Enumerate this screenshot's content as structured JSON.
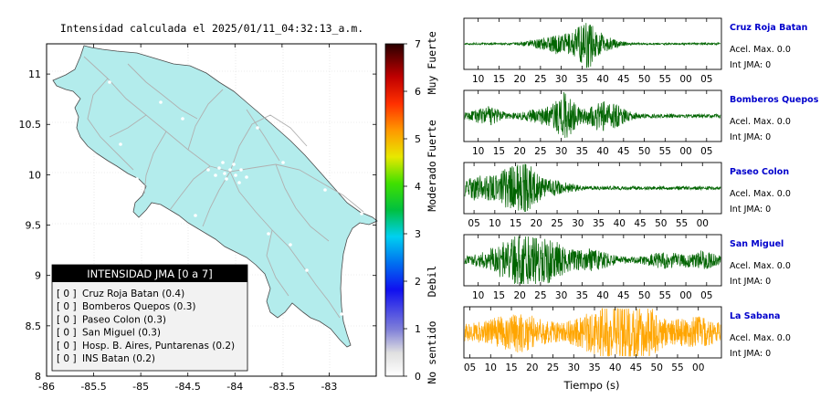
{
  "map": {
    "title": "Intensidad calculada el 2025/01/11_04:32:13_a.m.",
    "lon_ticks": [
      "-86",
      "-85.5",
      "-85",
      "-84.5",
      "-84",
      "-83.5",
      "-83"
    ],
    "lat_ticks": [
      "11",
      "10.5",
      "10",
      "9.5",
      "9",
      "8.5",
      "8"
    ],
    "lon_range": [
      -86,
      -82.5
    ],
    "lat_range": [
      8,
      11.3
    ],
    "land_color": "#b3ecec",
    "road_color": "#b0b0b0",
    "legend": {
      "header": "INTENSIDAD JMA [0 a 7]",
      "items": [
        {
          "level": "[ 0 ]",
          "label": "Cruz Roja Batan (0.4)"
        },
        {
          "level": "[ 0 ]",
          "label": "Bomberos Quepos (0.3)"
        },
        {
          "level": "[ 0 ]",
          "label": "Paseo Colon (0.3)"
        },
        {
          "level": "[ 0 ]",
          "label": "San Miguel (0.3)"
        },
        {
          "level": "[ 0 ]",
          "label": "Hosp. B. Aires, Puntarenas (0.2)"
        },
        {
          "level": "[ 0 ]",
          "label": "INS Batan (0.2)"
        }
      ]
    }
  },
  "colorbar": {
    "ticks": [
      "0",
      "1",
      "2",
      "3",
      "4",
      "5",
      "6",
      "7"
    ],
    "range": [
      0,
      7
    ],
    "categories": [
      {
        "label": "No sentido",
        "center": 0.5
      },
      {
        "label": "Debil",
        "center": 2
      },
      {
        "label": "Moderado",
        "center": 4
      },
      {
        "label": "Fuerte",
        "center": 5
      },
      {
        "label": "Muy Fuerte",
        "center": 6.6
      }
    ]
  },
  "chart_data": {
    "type": "line",
    "xlabel": "Tiempo (s)",
    "panels": [
      {
        "station": "Cruz Roja Batan",
        "accel_label": "Acel. Max. 0.0",
        "int_label": "Int JMA: 0",
        "color": "#006400",
        "ticks": [
          "10",
          "15",
          "20",
          "25",
          "30",
          "35",
          "40",
          "45",
          "50",
          "55",
          "00",
          "05"
        ],
        "first_tick_offset": 3,
        "bursts": [
          {
            "t": 22,
            "a": 0.4,
            "w": 4
          },
          {
            "t": 29,
            "a": 1.0,
            "w": 2
          },
          {
            "t": 33,
            "a": 0.3,
            "w": 3
          }
        ],
        "noise": 0.04
      },
      {
        "station": "Bomberos Quepos",
        "accel_label": "Acel. Max. 0.0",
        "int_label": "Int JMA: 0",
        "color": "#006400",
        "ticks": [
          "10",
          "15",
          "20",
          "25",
          "30",
          "35",
          "40",
          "45",
          "50",
          "55",
          "00",
          "05"
        ],
        "first_tick_offset": 3,
        "bursts": [
          {
            "t": 5,
            "a": 0.35,
            "w": 3
          },
          {
            "t": 18,
            "a": 0.3,
            "w": 3
          },
          {
            "t": 24,
            "a": 1.0,
            "w": 2
          },
          {
            "t": 32,
            "a": 0.45,
            "w": 3
          },
          {
            "t": 36,
            "a": 0.3,
            "w": 3
          }
        ],
        "noise": 0.08
      },
      {
        "station": "Paseo Colon",
        "accel_label": "Acel. Max. 0.0",
        "int_label": "Int JMA: 0",
        "color": "#006400",
        "ticks": [
          "05",
          "10",
          "15",
          "20",
          "25",
          "30",
          "35",
          "40",
          "45",
          "50",
          "55",
          "00"
        ],
        "first_tick_offset": 2,
        "bursts": [
          {
            "t": 2,
            "a": 0.45,
            "w": 3
          },
          {
            "t": 9,
            "a": 0.55,
            "w": 3
          },
          {
            "t": 14,
            "a": 1.0,
            "w": 2.5
          },
          {
            "t": 20,
            "a": 0.3,
            "w": 4
          }
        ],
        "noise": 0.08
      },
      {
        "station": "San Miguel",
        "accel_label": "Acel. Max. 0.0",
        "int_label": "Int JMA: 0",
        "color": "#006400",
        "ticks": [
          "10",
          "15",
          "20",
          "25",
          "30",
          "35",
          "40",
          "45",
          "50",
          "55",
          "00",
          "05"
        ],
        "first_tick_offset": 3,
        "bursts": [
          {
            "t": 12,
            "a": 1.0,
            "w": 5
          },
          {
            "t": 20,
            "a": 0.6,
            "w": 4
          },
          {
            "t": 30,
            "a": 0.35,
            "w": 4
          },
          {
            "t": 48,
            "a": 0.3,
            "w": 3
          },
          {
            "t": 57,
            "a": 0.3,
            "w": 3
          }
        ],
        "noise": 0.12
      },
      {
        "station": "La Sabana",
        "accel_label": "Acel. Max. 0.0",
        "int_label": "Int JMA: 0",
        "color": "#ffa500",
        "ticks": [
          "05",
          "10",
          "15",
          "20",
          "25",
          "30",
          "35",
          "40",
          "45",
          "50",
          "55",
          "00"
        ],
        "first_tick_offset": 1,
        "bursts": [
          {
            "t": 12,
            "a": 0.55,
            "w": 5
          },
          {
            "t": 32,
            "a": 0.7,
            "w": 4
          },
          {
            "t": 38,
            "a": 1.0,
            "w": 3
          },
          {
            "t": 44,
            "a": 0.65,
            "w": 3
          },
          {
            "t": 55,
            "a": 0.35,
            "w": 4
          }
        ],
        "noise": 0.35
      }
    ]
  }
}
